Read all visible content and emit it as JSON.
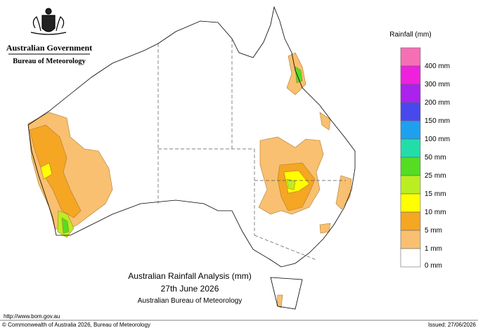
{
  "header": {
    "government": "Australian Government",
    "agency": "Bureau of Meteorology"
  },
  "legend": {
    "title": "Rainfall (mm)",
    "items": [
      {
        "label": null,
        "color": "#f56fb5"
      },
      {
        "label": "400 mm",
        "color": "#ee22dd"
      },
      {
        "label": "300 mm",
        "color": "#aa22ee"
      },
      {
        "label": "200 mm",
        "color": "#4848ee"
      },
      {
        "label": "150 mm",
        "color": "#1ea0ee"
      },
      {
        "label": "100 mm",
        "color": "#22ddaa"
      },
      {
        "label": "50 mm",
        "color": "#55dd22"
      },
      {
        "label": "25 mm",
        "color": "#bbee22"
      },
      {
        "label": "15 mm",
        "color": "#ffff00"
      },
      {
        "label": "10 mm",
        "color": "#f5a623"
      },
      {
        "label": "5 mm",
        "color": "#f8c070"
      },
      {
        "label": "1 mm",
        "color": "#ffffff"
      }
    ],
    "bottom_label": "0 mm"
  },
  "map_title": {
    "line1": "Australian Rainfall Analysis (mm)",
    "line2": "27th June 2026",
    "line3": "Australian Bureau of Meteorology"
  },
  "footer": {
    "url": "http://www.bom.gov.au",
    "copyright": "© Commonwealth of Australia 2026, Bureau of Meteorology",
    "issued": "Issued: 27/06/2026"
  }
}
